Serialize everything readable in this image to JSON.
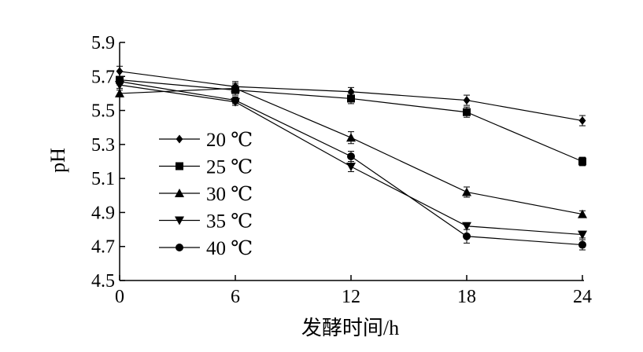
{
  "chart_data": {
    "type": "line",
    "title": "",
    "xlabel": "发酵时间/h",
    "ylabel": "pH",
    "x": [
      0,
      6,
      12,
      18,
      24
    ],
    "xlim": [
      0,
      24
    ],
    "ylim": [
      4.5,
      5.9
    ],
    "xticks": [
      "0",
      "6",
      "12",
      "18",
      "24"
    ],
    "yticks": [
      "4.5",
      "4.7",
      "4.9",
      "5.1",
      "5.3",
      "5.5",
      "5.7",
      "5.9"
    ],
    "grid": false,
    "legend_position": "left",
    "series": [
      {
        "name": "20 ℃",
        "marker": "diamond",
        "values": [
          5.73,
          5.64,
          5.61,
          5.56,
          5.44
        ],
        "errors": [
          0.03,
          0.03,
          0.025,
          0.03,
          0.03
        ]
      },
      {
        "name": "25 ℃",
        "marker": "square",
        "values": [
          5.68,
          5.62,
          5.57,
          5.49,
          5.2
        ],
        "errors": [
          0.02,
          0.03,
          0.03,
          0.03,
          0.025
        ]
      },
      {
        "name": "30 ℃",
        "marker": "triangle-up",
        "values": [
          5.6,
          5.63,
          5.34,
          5.02,
          4.89
        ],
        "errors": [
          0.02,
          0.03,
          0.035,
          0.03,
          0.02
        ]
      },
      {
        "name": "35 ℃",
        "marker": "triangle-down",
        "values": [
          5.65,
          5.55,
          5.17,
          4.82,
          4.77
        ],
        "errors": [
          0.02,
          0.02,
          0.03,
          0.02,
          0.02
        ]
      },
      {
        "name": "40 ℃",
        "marker": "circle",
        "values": [
          5.67,
          5.56,
          5.23,
          4.76,
          4.71
        ],
        "errors": [
          0.02,
          0.02,
          0.03,
          0.04,
          0.03
        ]
      }
    ]
  }
}
